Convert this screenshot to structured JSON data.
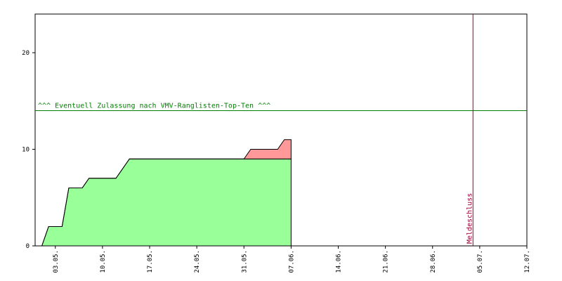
{
  "chart_data": {
    "type": "stacked-area",
    "x": [
      "01.05.",
      "02.05.",
      "04.05.",
      "05.05.",
      "07.05.",
      "08.05.",
      "12.05.",
      "14.05.",
      "31.05.",
      "01.06.",
      "05.06.",
      "06.06.",
      "07.06."
    ],
    "series": [
      {
        "color": "#99ff99",
        "values": [
          0,
          2,
          2,
          6,
          6,
          7,
          7,
          9,
          9,
          9,
          9,
          9,
          9
        ]
      },
      {
        "color": "#ff9999",
        "values": [
          0,
          0,
          0,
          0,
          0,
          0,
          0,
          0,
          0,
          1,
          1,
          2,
          2
        ]
      }
    ],
    "xlim": [
      "30.04.",
      "12.07."
    ],
    "xticks": [
      "03.05.",
      "10.05.",
      "17.05.",
      "24.05.",
      "31.05.",
      "07.06.",
      "14.06.",
      "21.06.",
      "28.06.",
      "05.07.",
      "12.07."
    ],
    "ylim": [
      0,
      24
    ],
    "yticks": [
      0,
      10,
      20
    ],
    "annotations": [
      {
        "y": 14,
        "label": "^^^ Eventuell Zulassung nach VMV-Ranglisten-Top-Ten ^^^",
        "color": "#008000"
      },
      {
        "x": "04.07.",
        "label": "Meldeschluss",
        "color": "#990033"
      }
    ]
  }
}
